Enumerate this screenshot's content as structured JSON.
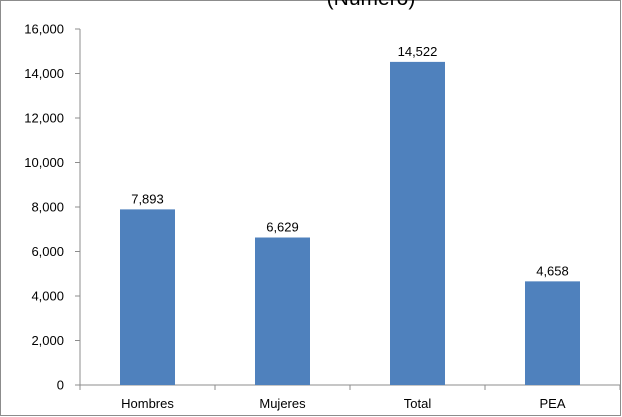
{
  "chart_data": {
    "type": "bar",
    "title": "(Número)",
    "categories": [
      "Hombres",
      "Mujeres",
      "Total",
      "PEA"
    ],
    "values": [
      7893,
      6629,
      14522,
      4658
    ],
    "data_labels": [
      "7,893",
      "6,629",
      "14,522",
      "4,658"
    ],
    "y_ticks": [
      "0",
      "2,000",
      "4,000",
      "6,000",
      "8,000",
      "10,000",
      "12,000",
      "14,000",
      "16,000"
    ],
    "ylim": [
      0,
      16000
    ],
    "y_step": 2000,
    "bar_color": "#4f81bd",
    "grid": false,
    "legend": "none"
  }
}
